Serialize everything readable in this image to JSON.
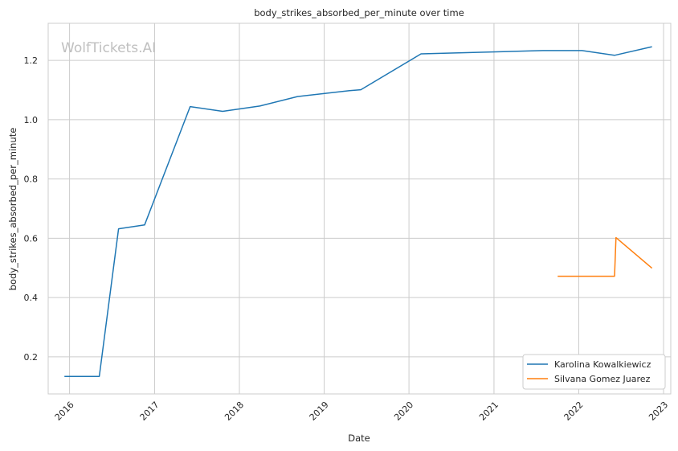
{
  "chart_data": {
    "type": "line",
    "title": "body_strikes_absorbed_per_minute over time",
    "xlabel": "Date",
    "ylabel": "body_strikes_absorbed_per_minute",
    "watermark": "WolfTickets.AI",
    "x_ticks": [
      "2016",
      "2017",
      "2018",
      "2019",
      "2020",
      "2021",
      "2022",
      "2023"
    ],
    "y_ticks": [
      "0.2",
      "0.4",
      "0.6",
      "0.8",
      "1.0",
      "1.2"
    ],
    "xlim": [
      "2015-10-01",
      "2023-02-01"
    ],
    "ylim": [
      0.075,
      1.325
    ],
    "grid": true,
    "legend_position": "bottom-right",
    "colors": {
      "series_1": "#1f77b4",
      "series_2": "#ff7f0e",
      "grid": "#cccccc",
      "axes": "#cccccc"
    },
    "series": [
      {
        "name": "Karolina Kowalkiewicz",
        "points": [
          [
            "2015-12-10",
            0.134
          ],
          [
            "2016-05-08",
            0.134
          ],
          [
            "2016-07-30",
            0.632
          ],
          [
            "2016-11-19",
            0.645
          ],
          [
            "2017-06-03",
            1.044
          ],
          [
            "2017-10-21",
            1.028
          ],
          [
            "2018-03-30",
            1.046
          ],
          [
            "2018-09-08",
            1.078
          ],
          [
            "2019-04-20",
            1.098
          ],
          [
            "2019-06-08",
            1.101
          ],
          [
            "2020-02-22",
            1.222
          ],
          [
            "2021-07-31",
            1.233
          ],
          [
            "2022-01-15",
            1.233
          ],
          [
            "2022-06-04",
            1.217
          ],
          [
            "2022-11-12",
            1.246
          ]
        ]
      },
      {
        "name": "Silvana Gomez Juarez",
        "points": [
          [
            "2021-10-02",
            0.472
          ],
          [
            "2022-06-04",
            0.472
          ],
          [
            "2022-06-10",
            0.602
          ],
          [
            "2022-11-12",
            0.499
          ]
        ]
      }
    ]
  }
}
